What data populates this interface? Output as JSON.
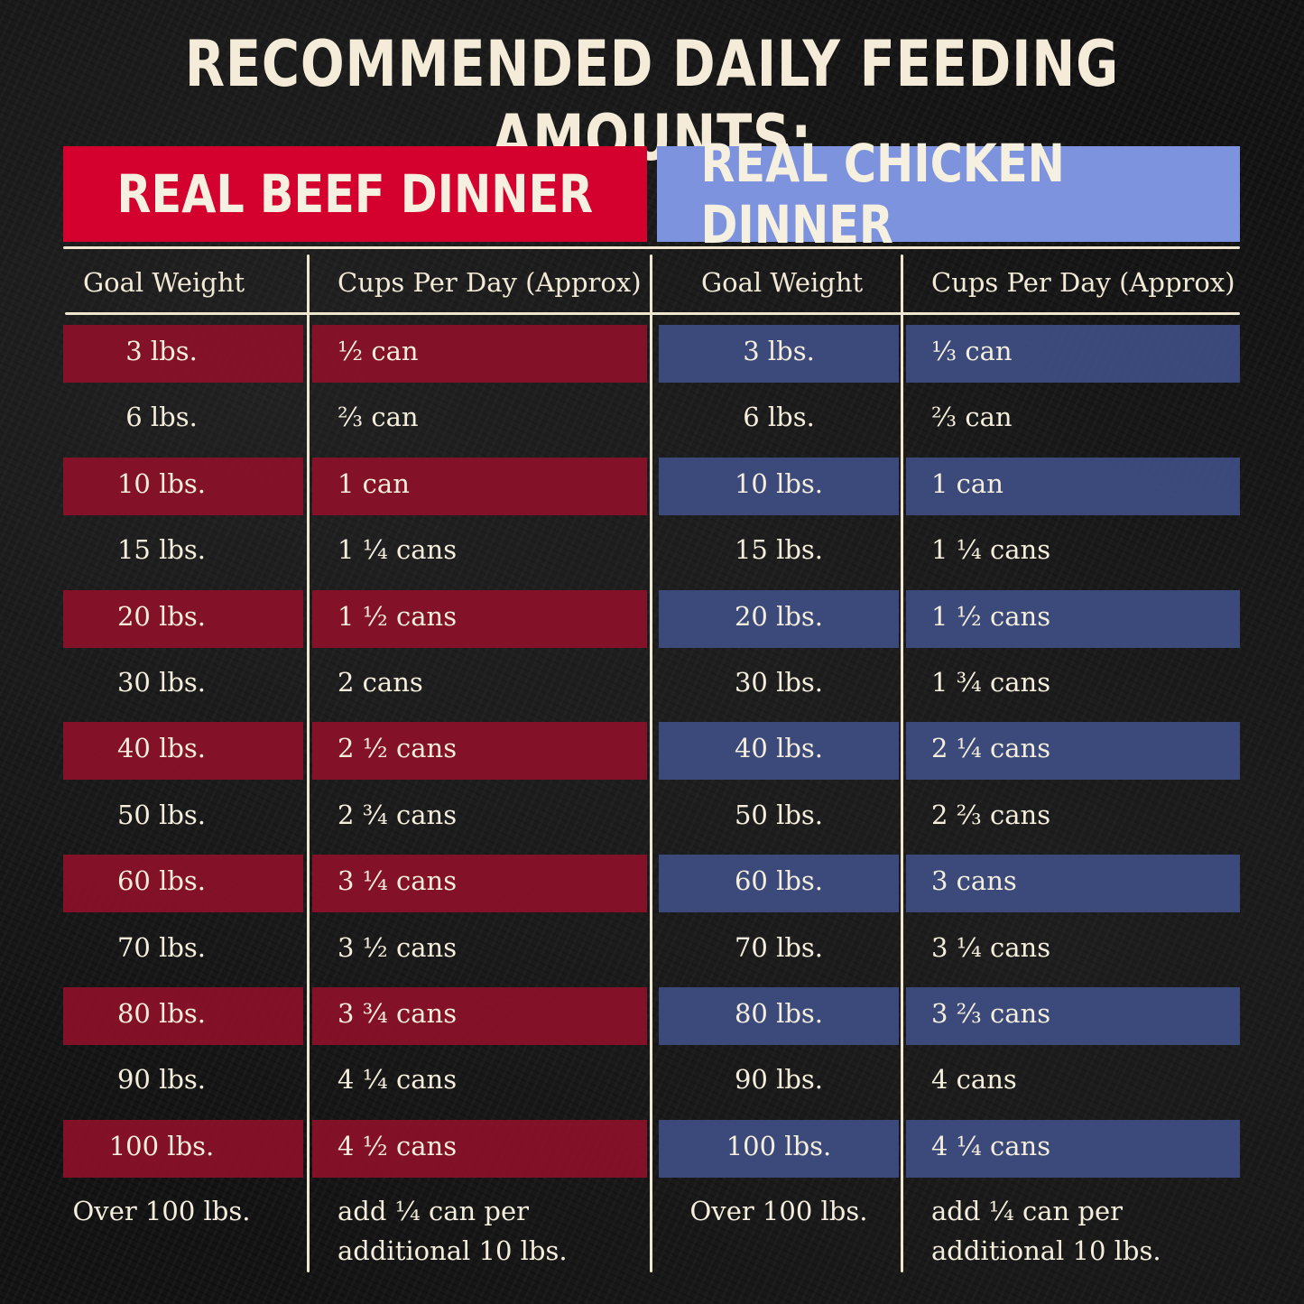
{
  "title": "RECOMMENDED DAILY FEEDING AMOUNTS:",
  "colors": {
    "beef_accent": "#d4002e",
    "chicken_accent": "#7d93de",
    "beef_band": "#8c1028",
    "chicken_band": "#3e4e82",
    "text": "#f2ead6"
  },
  "beef": {
    "heading": "REAL BEEF DINNER",
    "col_weight": "Goal Weight",
    "col_amount": "Cups Per Day (Approx)",
    "rows": [
      {
        "weight": "3 lbs.",
        "amount": "½ can"
      },
      {
        "weight": "6 lbs.",
        "amount": "⅔ can"
      },
      {
        "weight": "10 lbs.",
        "amount": "1 can"
      },
      {
        "weight": "15 lbs.",
        "amount": "1 ¼ cans"
      },
      {
        "weight": "20 lbs.",
        "amount": "1 ½ cans"
      },
      {
        "weight": "30 lbs.",
        "amount": "2 cans"
      },
      {
        "weight": "40 lbs.",
        "amount": "2 ½ cans"
      },
      {
        "weight": "50 lbs.",
        "amount": "2 ¾ cans"
      },
      {
        "weight": "60 lbs.",
        "amount": "3 ¼ cans"
      },
      {
        "weight": "70 lbs.",
        "amount": "3 ½ cans"
      },
      {
        "weight": "80 lbs.",
        "amount": "3 ¾ cans"
      },
      {
        "weight": "90 lbs.",
        "amount": "4 ¼ cans"
      },
      {
        "weight": "100 lbs.",
        "amount": "4 ½ cans"
      }
    ],
    "footer_weight": "Over 100 lbs.",
    "footer_amount_line1": "add ¼ can per",
    "footer_amount_line2": "additional 10 lbs."
  },
  "chicken": {
    "heading": "REAL CHICKEN DINNER",
    "col_weight": "Goal Weight",
    "col_amount": "Cups Per Day (Approx)",
    "rows": [
      {
        "weight": "3 lbs.",
        "amount": "⅓ can"
      },
      {
        "weight": "6 lbs.",
        "amount": "⅔ can"
      },
      {
        "weight": "10 lbs.",
        "amount": "1 can"
      },
      {
        "weight": "15 lbs.",
        "amount": "1 ¼ cans"
      },
      {
        "weight": "20 lbs.",
        "amount": "1 ½ cans"
      },
      {
        "weight": "30 lbs.",
        "amount": "1 ¾ cans"
      },
      {
        "weight": "40 lbs.",
        "amount": "2 ¼ cans"
      },
      {
        "weight": "50 lbs.",
        "amount": "2 ⅔ cans"
      },
      {
        "weight": "60 lbs.",
        "amount": "3 cans"
      },
      {
        "weight": "70 lbs.",
        "amount": "3 ¼ cans"
      },
      {
        "weight": "80 lbs.",
        "amount": "3 ⅔ cans"
      },
      {
        "weight": "90 lbs.",
        "amount": "4 cans"
      },
      {
        "weight": "100 lbs.",
        "amount": "4 ¼ cans"
      }
    ],
    "footer_weight": "Over 100 lbs.",
    "footer_amount_line1": "add ¼ can per",
    "footer_amount_line2": "additional 10 lbs."
  }
}
